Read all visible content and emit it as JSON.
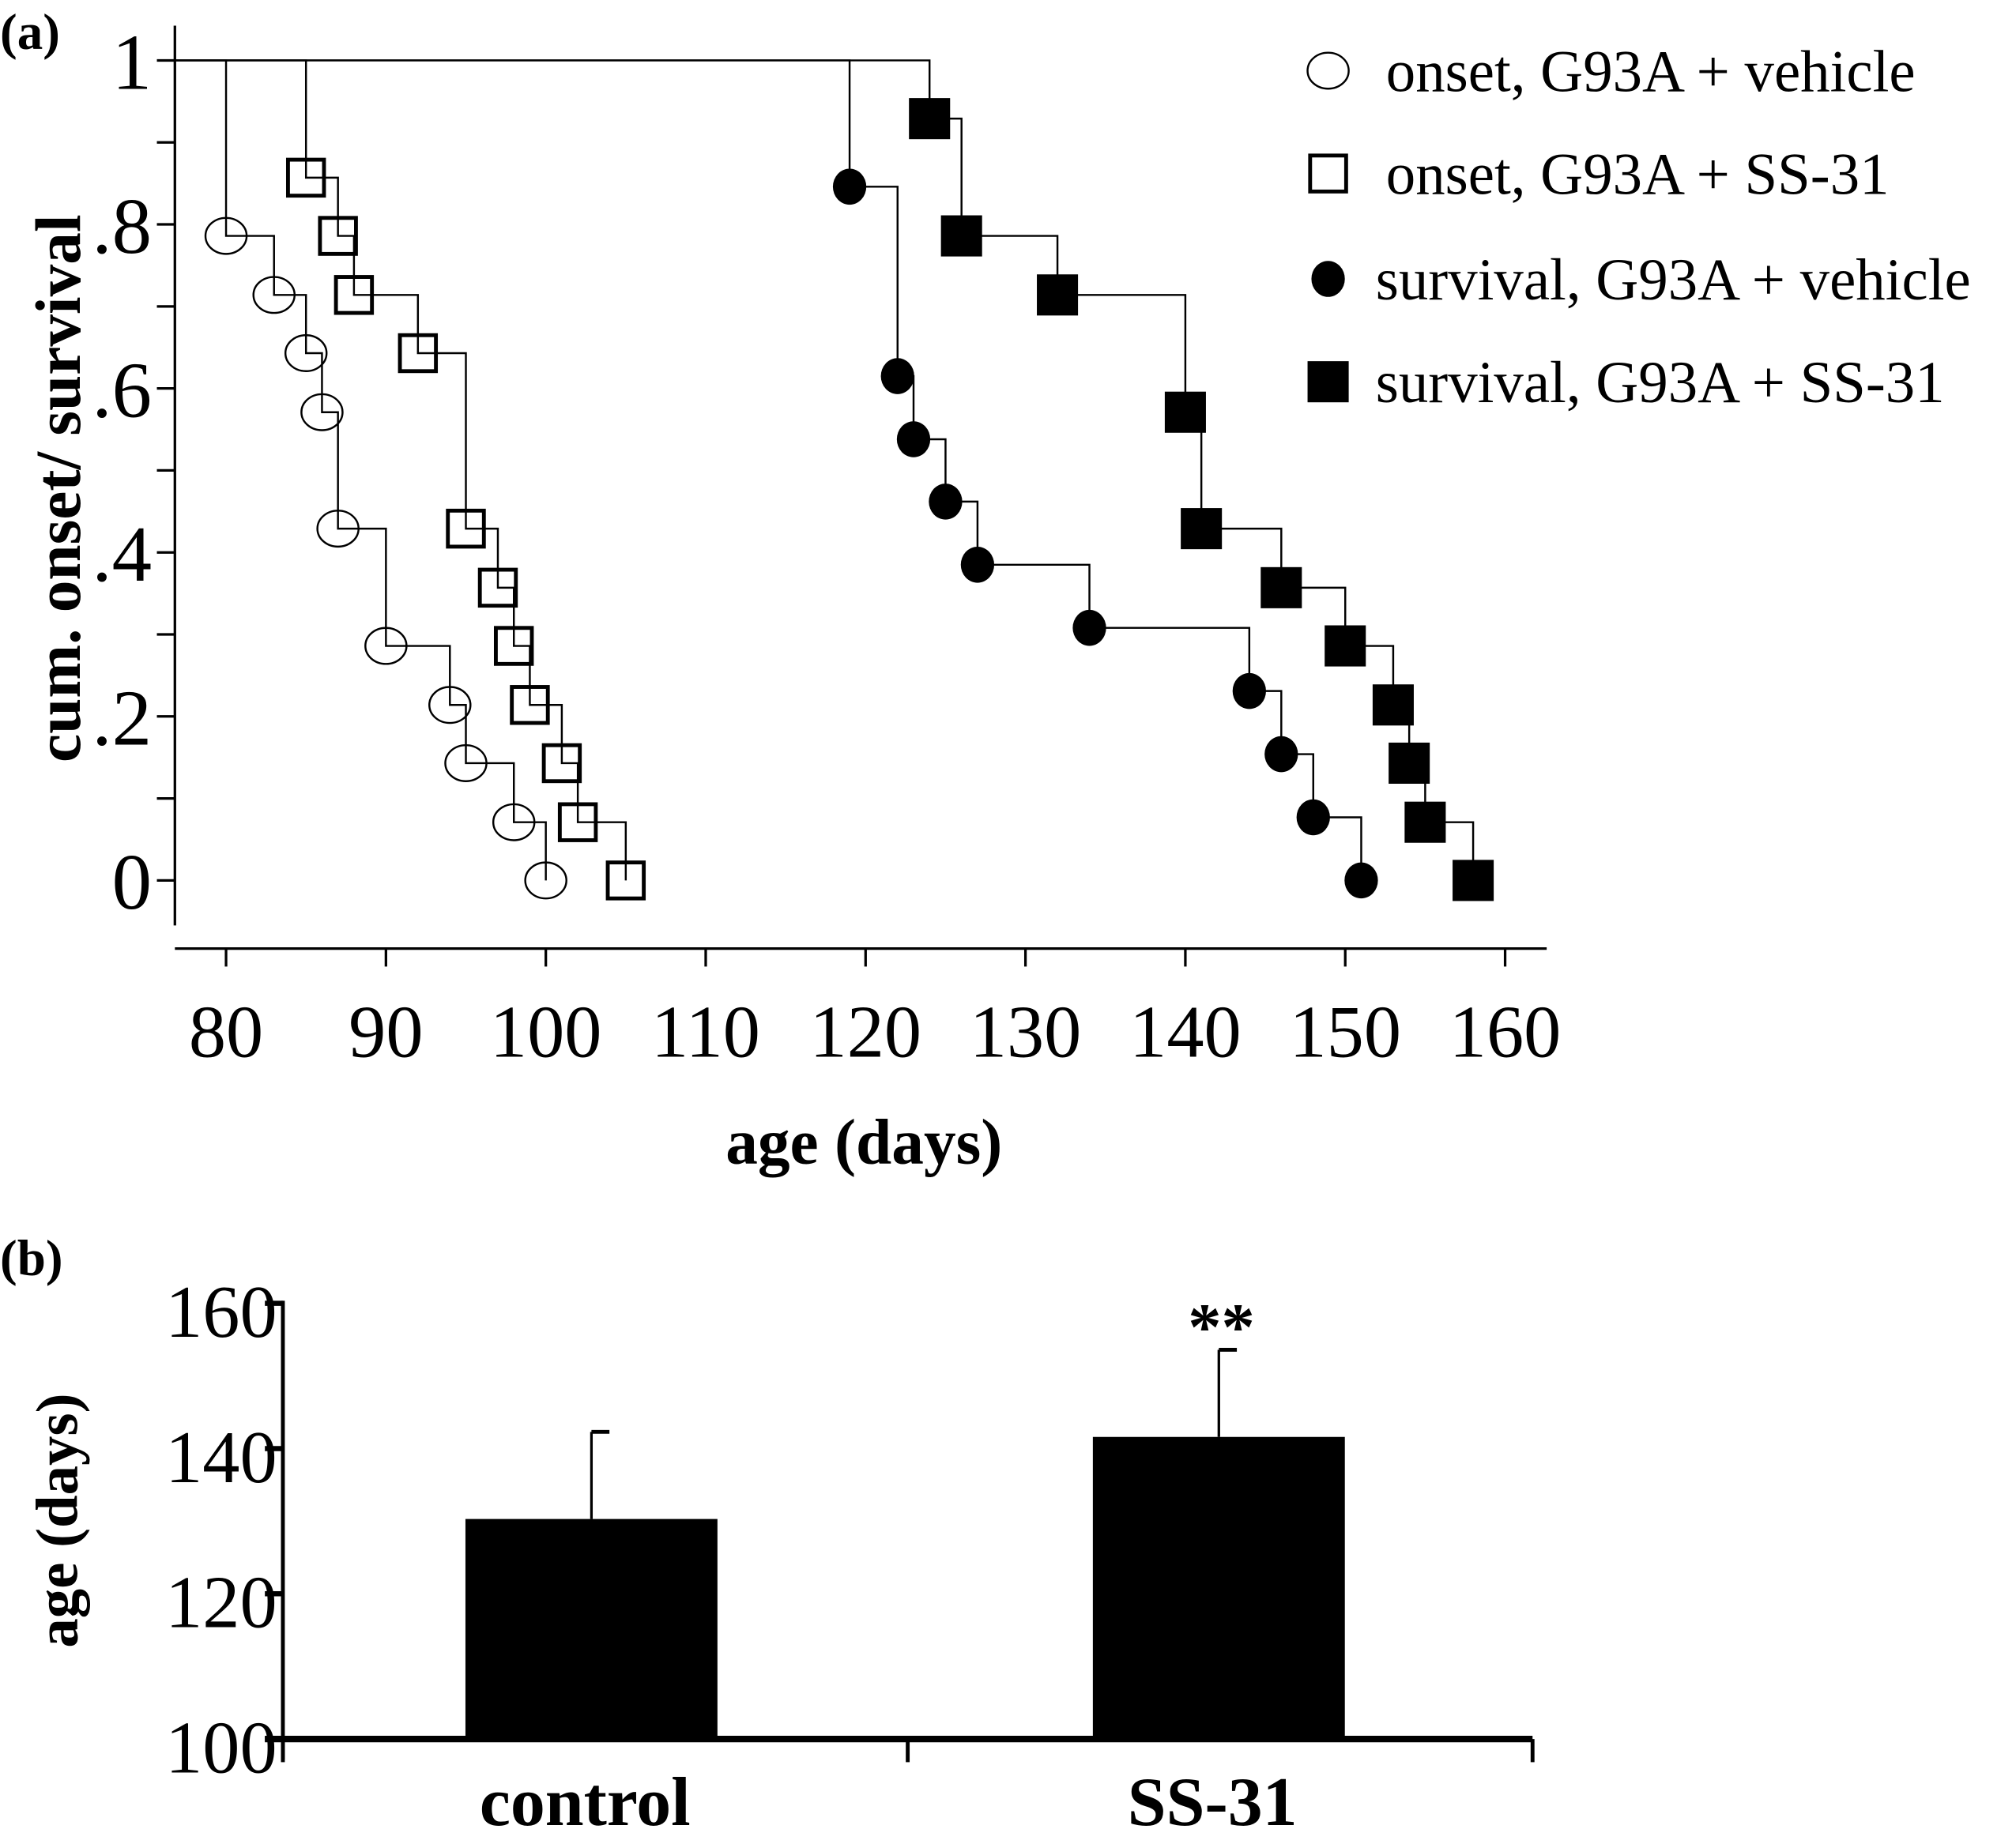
{
  "chart_data": [
    {
      "panel_label": "(a)",
      "type": "line",
      "step": true,
      "xlabel": "age (days)",
      "ylabel": "cum. onset/ survival",
      "xlim": [
        76.8,
        162.6
      ],
      "ylim": [
        -0.055,
        1.04
      ],
      "x_ticks": [
        80,
        90,
        100,
        110,
        120,
        130,
        140,
        150,
        160
      ],
      "y_ticks": [
        0,
        0.2,
        0.4,
        0.6,
        0.8,
        1
      ],
      "y_tick_labels": [
        "0",
        ".2",
        ".4",
        ".6",
        ".8",
        "1"
      ],
      "y_minor_ticks": [
        0.1,
        0.3,
        0.5,
        0.7,
        0.9
      ],
      "grid": false,
      "legend_position": "top-right",
      "series": [
        {
          "name": "onset, G93A + vehicle",
          "marker": "open-circle",
          "x": [
            80,
            83,
            85,
            86,
            87,
            90,
            94,
            95,
            98,
            100
          ],
          "y": [
            0.786,
            0.714,
            0.643,
            0.571,
            0.429,
            0.286,
            0.214,
            0.143,
            0.071,
            0
          ]
        },
        {
          "name": "onset, G93A + SS-31",
          "marker": "open-square",
          "x": [
            85,
            87,
            88,
            92,
            95,
            97,
            98,
            99,
            101,
            102,
            105
          ],
          "y": [
            0.857,
            0.786,
            0.714,
            0.643,
            0.429,
            0.357,
            0.286,
            0.214,
            0.143,
            0.071,
            0
          ]
        },
        {
          "name": "survival, G93A + vehicle",
          "marker": "filled-circle",
          "x": [
            119,
            122,
            123,
            125,
            127,
            134,
            144,
            146,
            148,
            151
          ],
          "y": [
            0.846,
            0.615,
            0.538,
            0.462,
            0.385,
            0.308,
            0.231,
            0.154,
            0.077,
            0
          ]
        },
        {
          "name": "survival, G93A + SS-31",
          "marker": "filled-square",
          "x": [
            124,
            126,
            132,
            140,
            141,
            146,
            150,
            153,
            154,
            155,
            158
          ],
          "y": [
            0.929,
            0.786,
            0.714,
            0.571,
            0.429,
            0.357,
            0.286,
            0.214,
            0.143,
            0.071,
            0
          ]
        }
      ]
    },
    {
      "panel_label": "(b)",
      "type": "bar",
      "ylabel": "age (days)",
      "ylim": [
        100,
        160
      ],
      "y_ticks": [
        100,
        120,
        140,
        160
      ],
      "grid": false,
      "categories": [
        "control",
        "SS-31"
      ],
      "values": [
        130.3,
        141.6
      ],
      "error": [
        12.0,
        12.0
      ],
      "annotations": [
        "",
        "**"
      ],
      "bar_color": "#000000"
    }
  ]
}
